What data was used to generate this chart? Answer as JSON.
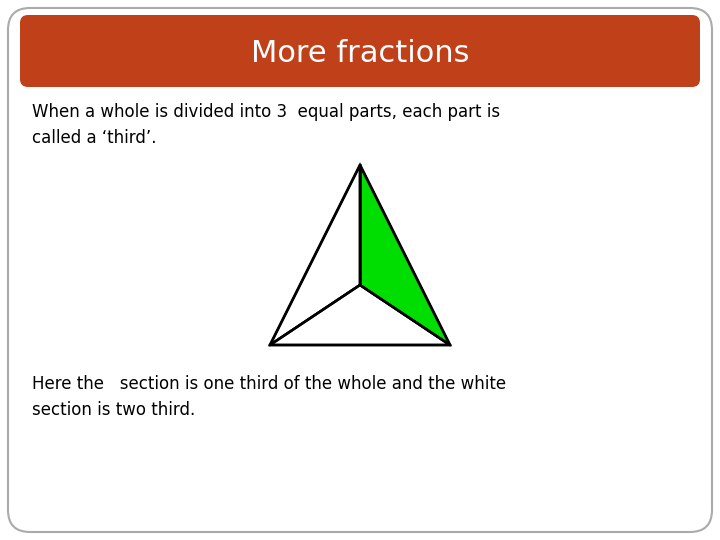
{
  "title": "More fractions",
  "title_bg_color": "#C0401A",
  "title_text_color": "#FFFFFF",
  "bg_color": "#FFFFFF",
  "border_color": "#AAAAAA",
  "text1": "When a whole is divided into 3  equal parts, each part is\ncalled a ‘third’.",
  "text2": "Here the   section is one third of the whole and the white\nsection is two third.",
  "text_color": "#000000",
  "green_color": "#00DD00",
  "white_color": "#FFFFFF",
  "triangle_edge_color": "#000000",
  "triangle_lw": 1.8,
  "title_fontsize": 22,
  "body_fontsize": 12
}
